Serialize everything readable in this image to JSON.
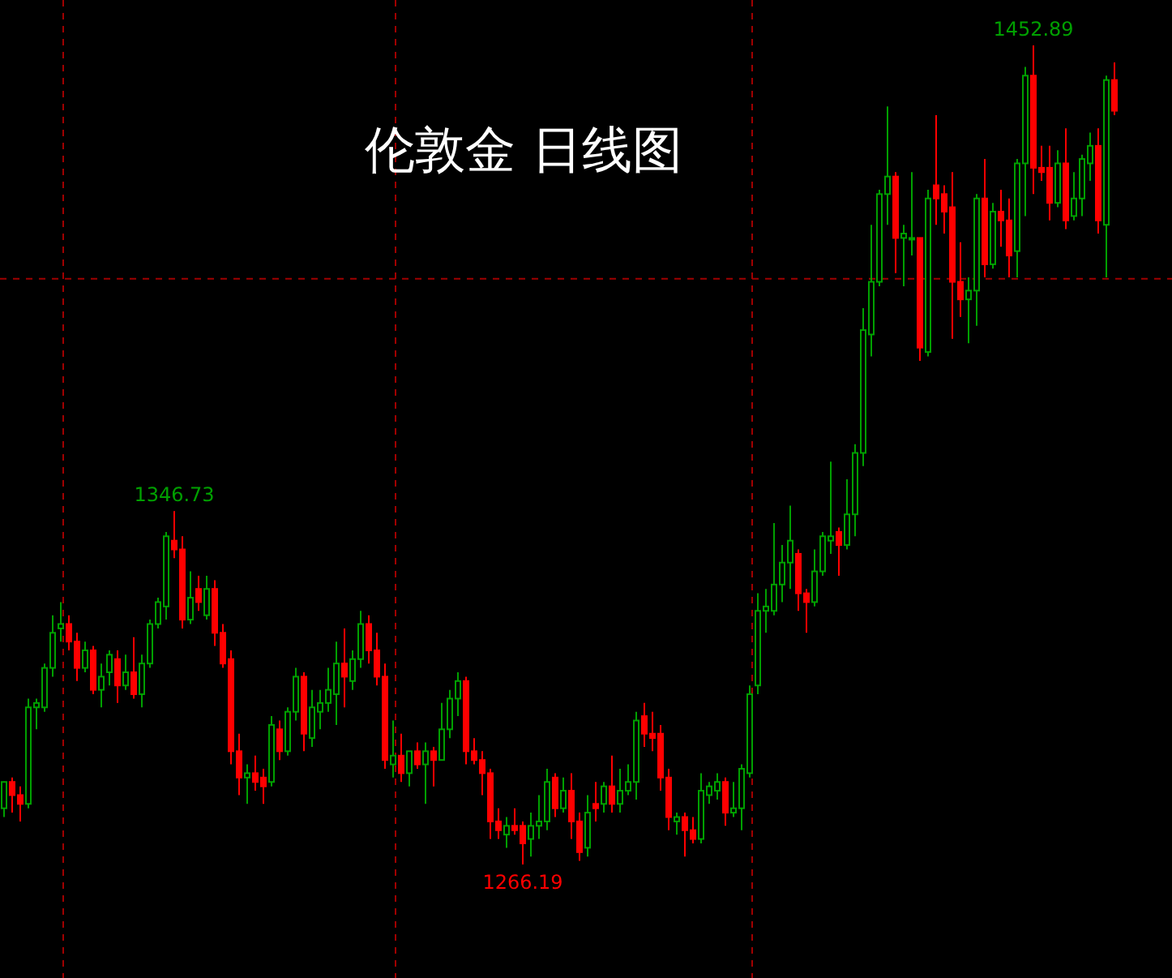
{
  "chart_data": {
    "type": "candlestick",
    "title": "伦敦金  日线图",
    "categories": [
      null,
      null,
      null,
      null,
      null,
      null,
      null,
      null,
      null,
      null,
      null,
      null,
      null,
      null,
      null,
      null,
      null,
      null,
      null,
      null,
      null,
      null,
      null,
      null,
      null,
      null,
      null,
      null,
      null,
      null,
      null,
      null,
      null,
      null,
      null,
      null,
      null,
      null,
      null,
      null,
      null,
      null,
      null,
      null,
      null,
      null,
      null,
      null,
      null,
      null,
      null,
      null,
      null,
      null,
      null,
      null,
      null,
      null,
      null,
      null,
      null,
      null,
      null,
      null,
      null,
      null,
      null,
      null,
      null,
      null,
      null,
      null,
      null,
      null,
      null,
      null,
      null,
      null,
      null,
      null,
      null,
      null,
      null,
      null,
      null,
      null,
      null,
      null,
      null,
      null,
      null,
      null,
      null,
      null,
      null,
      null,
      null,
      null,
      null,
      null,
      null,
      null,
      null,
      null,
      null,
      null,
      null,
      null,
      null,
      null,
      null,
      null,
      null,
      null,
      null,
      null,
      null,
      null,
      null,
      null,
      null,
      null,
      null,
      null,
      null,
      null,
      null,
      null,
      null,
      null,
      null,
      null,
      null,
      null,
      null,
      null,
      null,
      null
    ],
    "ohlc": [
      [
        1279,
        1285,
        1277,
        1285
      ],
      [
        1285,
        1286,
        1278,
        1282
      ],
      [
        1282,
        1284,
        1276,
        1280
      ],
      [
        1280,
        1304,
        1279,
        1302
      ],
      [
        1302,
        1304,
        1297,
        1303
      ],
      [
        1302,
        1312,
        1301,
        1311
      ],
      [
        1311,
        1323,
        1309,
        1319
      ],
      [
        1320,
        1326,
        1317,
        1321
      ],
      [
        1321,
        1323,
        1315,
        1317
      ],
      [
        1317,
        1319,
        1308,
        1311
      ],
      [
        1311,
        1317,
        1310,
        1315
      ],
      [
        1315,
        1316,
        1305,
        1306
      ],
      [
        1306,
        1312,
        1302,
        1309
      ],
      [
        1310,
        1315,
        1307,
        1314
      ],
      [
        1313,
        1315,
        1303,
        1307
      ],
      [
        1307,
        1314,
        1306,
        1310
      ],
      [
        1310,
        1318,
        1304,
        1305
      ],
      [
        1305,
        1314,
        1302,
        1312
      ],
      [
        1312,
        1322,
        1311,
        1321
      ],
      [
        1321,
        1327,
        1320,
        1326
      ],
      [
        1325,
        1342,
        1322,
        1341
      ],
      [
        1340,
        1346.73,
        1336,
        1338
      ],
      [
        1338,
        1341,
        1320,
        1322
      ],
      [
        1322,
        1333,
        1321,
        1327
      ],
      [
        1329,
        1332,
        1324,
        1326
      ],
      [
        1323,
        1332,
        1322,
        1329
      ],
      [
        1329,
        1331,
        1316,
        1319
      ],
      [
        1319,
        1321,
        1311,
        1312
      ],
      [
        1313,
        1315,
        1289,
        1292
      ],
      [
        1292,
        1296,
        1282,
        1286
      ],
      [
        1286,
        1289,
        1280,
        1287
      ],
      [
        1287,
        1291,
        1283,
        1285
      ],
      [
        1286,
        1288,
        1280,
        1284
      ],
      [
        1285,
        1300,
        1284,
        1298
      ],
      [
        1297,
        1299,
        1290,
        1292
      ],
      [
        1292,
        1302,
        1291,
        1301
      ],
      [
        1301,
        1311,
        1299,
        1309
      ],
      [
        1309,
        1310,
        1292,
        1296
      ],
      [
        1295,
        1306,
        1293,
        1302
      ],
      [
        1301,
        1306,
        1297,
        1303
      ],
      [
        1303,
        1311,
        1301,
        1306
      ],
      [
        1305,
        1317,
        1298,
        1312
      ],
      [
        1312,
        1320,
        1302,
        1309
      ],
      [
        1308,
        1315,
        1306,
        1313
      ],
      [
        1313,
        1324,
        1311,
        1321
      ],
      [
        1321,
        1323,
        1312,
        1315
      ],
      [
        1315,
        1319,
        1307,
        1309
      ],
      [
        1309,
        1312,
        1288,
        1290
      ],
      [
        1289,
        1299,
        1286,
        1291
      ],
      [
        1291,
        1296,
        1285,
        1287
      ],
      [
        1287,
        1292,
        1284,
        1292
      ],
      [
        1292,
        1294,
        1288,
        1289
      ],
      [
        1289,
        1294,
        1280,
        1292
      ],
      [
        1292,
        1293,
        1284,
        1290
      ],
      [
        1290,
        1303,
        1290,
        1297
      ],
      [
        1297,
        1306,
        1295,
        1304
      ],
      [
        1304,
        1310,
        1300,
        1308
      ],
      [
        1308,
        1309,
        1289,
        1292
      ],
      [
        1292,
        1295,
        1289,
        1290
      ],
      [
        1290,
        1292,
        1282,
        1287
      ],
      [
        1287,
        1288,
        1272,
        1276
      ],
      [
        1276,
        1279,
        1272,
        1274
      ],
      [
        1273,
        1277,
        1270,
        1275
      ],
      [
        1275,
        1279,
        1273,
        1274
      ],
      [
        1275,
        1276,
        1266.19,
        1271
      ],
      [
        1272,
        1278,
        1268,
        1275
      ],
      [
        1275,
        1282,
        1272,
        1276
      ],
      [
        1276,
        1288,
        1274,
        1285
      ],
      [
        1286,
        1287,
        1277,
        1279
      ],
      [
        1279,
        1286,
        1278,
        1283
      ],
      [
        1283,
        1287,
        1272,
        1276
      ],
      [
        1276,
        1278,
        1267,
        1269
      ],
      [
        1270,
        1282,
        1268,
        1278
      ],
      [
        1280,
        1285,
        1276,
        1279
      ],
      [
        1280,
        1285,
        1278,
        1284
      ],
      [
        1284,
        1291,
        1278,
        1280
      ],
      [
        1280,
        1288,
        1278,
        1283
      ],
      [
        1283,
        1289,
        1282,
        1285
      ],
      [
        1285,
        1301,
        1281,
        1299
      ],
      [
        1300,
        1303,
        1293,
        1296
      ],
      [
        1296,
        1301,
        1292,
        1295
      ],
      [
        1296,
        1298,
        1283,
        1286
      ],
      [
        1286,
        1288,
        1274,
        1277
      ],
      [
        1276,
        1278,
        1273,
        1277
      ],
      [
        1277,
        1278,
        1268,
        1274
      ],
      [
        1274,
        1277,
        1271,
        1272
      ],
      [
        1272,
        1287,
        1271,
        1283
      ],
      [
        1282,
        1285,
        1280,
        1284
      ],
      [
        1283,
        1287,
        1281,
        1285
      ],
      [
        1285,
        1286,
        1275,
        1278
      ],
      [
        1278,
        1285,
        1277,
        1279
      ],
      [
        1279,
        1289,
        1274,
        1288
      ],
      [
        1287,
        1307,
        1286,
        1305
      ],
      [
        1307,
        1328,
        1305,
        1324
      ],
      [
        1324,
        1329,
        1319,
        1325
      ],
      [
        1324,
        1344,
        1323,
        1330
      ],
      [
        1330,
        1339,
        1326,
        1335
      ],
      [
        1335,
        1348,
        1329,
        1340
      ],
      [
        1337,
        1338,
        1324,
        1328
      ],
      [
        1328,
        1329,
        1319,
        1326
      ],
      [
        1326,
        1338,
        1325,
        1333
      ],
      [
        1333,
        1342,
        1332,
        1341
      ],
      [
        1340,
        1358,
        1337,
        1341
      ],
      [
        1342,
        1343,
        1332,
        1339
      ],
      [
        1339,
        1354,
        1338,
        1346
      ],
      [
        1346,
        1362,
        1341,
        1360
      ],
      [
        1360,
        1393,
        1357,
        1388
      ],
      [
        1387,
        1412,
        1382,
        1399
      ],
      [
        1399,
        1420,
        1398,
        1419
      ],
      [
        1419,
        1439,
        1412,
        1423
      ],
      [
        1423,
        1424,
        1401,
        1409
      ],
      [
        1409,
        1412,
        1398,
        1410
      ],
      [
        1409,
        1424,
        1405,
        1409
      ],
      [
        1409,
        1409,
        1381,
        1384
      ],
      [
        1383,
        1420,
        1382,
        1418
      ],
      [
        1421,
        1437,
        1412,
        1418
      ],
      [
        1419,
        1421,
        1410,
        1415
      ],
      [
        1416,
        1424,
        1386,
        1399
      ],
      [
        1399,
        1408,
        1391,
        1395
      ],
      [
        1395,
        1400,
        1385,
        1397
      ],
      [
        1397,
        1419,
        1389,
        1418
      ],
      [
        1418,
        1427,
        1400,
        1403
      ],
      [
        1403,
        1417,
        1402,
        1415
      ],
      [
        1415,
        1420,
        1407,
        1413
      ],
      [
        1413,
        1418,
        1400,
        1405
      ],
      [
        1406,
        1427,
        1400,
        1426
      ],
      [
        1426,
        1448,
        1414,
        1446
      ],
      [
        1446,
        1452.89,
        1419,
        1425
      ],
      [
        1425,
        1430,
        1422,
        1424
      ],
      [
        1425,
        1430,
        1413,
        1417
      ],
      [
        1417,
        1429,
        1416,
        1426
      ],
      [
        1426,
        1434,
        1411,
        1413
      ],
      [
        1414,
        1424,
        1413,
        1418
      ],
      [
        1418,
        1428,
        1414,
        1427
      ],
      [
        1426,
        1433,
        1422,
        1430
      ],
      [
        1430,
        1434,
        1410,
        1413
      ],
      [
        1412,
        1446,
        1400,
        1445
      ],
      [
        1445,
        1449,
        1437,
        1438
      ]
    ],
    "colors": [
      "#00a000",
      "#ff0000",
      "#ff0000",
      "#00a000",
      "#00a000",
      "#00a000",
      "#00a000",
      "#00a000",
      "#ff0000",
      "#ff0000",
      "#00a000",
      "#ff0000",
      "#00a000",
      "#00a000",
      "#ff0000",
      "#00a000",
      "#ff0000",
      "#00a000",
      "#00a000",
      "#00a000",
      "#00a000",
      "#ff0000",
      "#ff0000",
      "#00a000",
      "#ff0000",
      "#00a000",
      "#ff0000",
      "#ff0000",
      "#ff0000",
      "#ff0000",
      "#00a000",
      "#ff0000",
      "#ff0000",
      "#00a000",
      "#ff0000",
      "#00a000",
      "#00a000",
      "#ff0000",
      "#00a000",
      "#00a000",
      "#00a000",
      "#00a000",
      "#ff0000",
      "#00a000",
      "#00a000",
      "#ff0000",
      "#ff0000",
      "#ff0000",
      "#00a000",
      "#ff0000",
      "#00a000",
      "#ff0000",
      "#00a000",
      "#ff0000",
      "#00a000",
      "#00a000",
      "#00a000",
      "#ff0000",
      "#ff0000",
      "#ff0000",
      "#ff0000",
      "#ff0000",
      "#00a000",
      "#ff0000",
      "#ff0000",
      "#00a000",
      "#00a000",
      "#00a000",
      "#ff0000",
      "#00a000",
      "#ff0000",
      "#ff0000",
      "#00a000",
      "#ff0000",
      "#00a000",
      "#ff0000",
      "#00a000",
      "#00a000",
      "#00a000",
      "#ff0000",
      "#ff0000",
      "#ff0000",
      "#ff0000",
      "#00a000",
      "#ff0000",
      "#ff0000",
      "#00a000",
      "#00a000",
      "#00a000",
      "#ff0000",
      "#00a000",
      "#00a000",
      "#00a000",
      "#00a000",
      "#00a000",
      "#00a000",
      "#00a000",
      "#00a000",
      "#ff0000",
      "#ff0000",
      "#00a000",
      "#00a000",
      "#00a000",
      "#ff0000",
      "#00a000",
      "#00a000",
      "#00a000",
      "#00a000",
      "#00a000",
      "#00a000",
      "#ff0000",
      "#00a000",
      "#00a000",
      "#ff0000",
      "#00a000",
      "#ff0000",
      "#ff0000",
      "#ff0000",
      "#ff0000",
      "#00a000",
      "#00a000",
      "#ff0000",
      "#00a000",
      "#ff0000",
      "#ff0000",
      "#00a000",
      "#00a000",
      "#ff0000",
      "#ff0000",
      "#ff0000",
      "#00a000",
      "#ff0000",
      "#00a000",
      "#00a000",
      "#00a000",
      "#ff0000",
      "#00a000",
      "#ff0000"
    ],
    "annotations": [
      {
        "text": "1452.89",
        "y": 1452.89
      },
      {
        "text": "1346.73",
        "y": 1346.73
      },
      {
        "text": "1266.19",
        "y": 1266.19
      }
    ],
    "ref_lines": [
      {
        "axis": "y",
        "value": 1399.7,
        "color": "#a00000",
        "line_style": "dashed"
      }
    ]
  }
}
